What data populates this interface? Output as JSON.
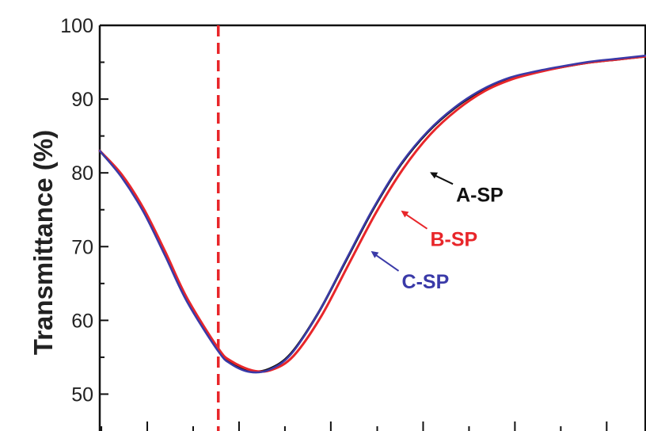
{
  "chart_data": {
    "type": "line",
    "title": "",
    "xlabel": "",
    "ylabel": "Transmittance (%)",
    "ylim": [
      45,
      100
    ],
    "yticks": [
      50,
      60,
      70,
      80,
      90,
      100
    ],
    "xlim": [
      0,
      100
    ],
    "grid": false,
    "reference_line": {
      "x": 21.7,
      "color": "#e8262a",
      "style": "dashed"
    },
    "series": [
      {
        "name": "A-SP",
        "color": "#111111",
        "x": [
          0,
          4,
          8,
          12,
          16,
          21.7,
          24,
          27.5,
          31,
          35,
          40,
          45,
          50,
          55,
          60,
          65,
          70,
          75,
          80,
          85,
          90,
          95,
          100
        ],
        "y": [
          83,
          79.5,
          74.8,
          68.8,
          62.6,
          55.9,
          54.2,
          53.1,
          53.4,
          55.5,
          61,
          68,
          75,
          81,
          85.5,
          88.8,
          91.2,
          92.8,
          93.7,
          94.4,
          95,
          95.4,
          95.8
        ]
      },
      {
        "name": "B-SP",
        "color": "#e8262a",
        "x": [
          0,
          4,
          8,
          12,
          16,
          21.7,
          24,
          28,
          31.5,
          35.5,
          40.5,
          45.5,
          50.5,
          55.5,
          60.5,
          65.5,
          70.5,
          75.5,
          80,
          85,
          90,
          95,
          100
        ],
        "y": [
          83,
          79.8,
          75.2,
          69.3,
          63,
          56.2,
          54.5,
          53.2,
          53.3,
          55.2,
          60.5,
          67.5,
          74.5,
          80.5,
          85.2,
          88.6,
          91.1,
          92.7,
          93.6,
          94.4,
          95,
          95.4,
          95.8
        ]
      },
      {
        "name": "C-SP",
        "color": "#3a3aa8",
        "x": [
          0,
          4,
          8,
          12,
          16,
          21.7,
          24,
          27.5,
          31,
          35,
          40,
          45,
          50,
          55,
          60,
          65,
          70,
          75,
          80,
          85,
          90,
          95,
          100
        ],
        "y": [
          83,
          79.4,
          74.7,
          68.7,
          62.5,
          55.8,
          54.1,
          53,
          53.3,
          55.4,
          61,
          68.1,
          75.1,
          81.1,
          85.6,
          88.9,
          91.3,
          92.9,
          93.8,
          94.5,
          95.1,
          95.5,
          95.9
        ]
      }
    ],
    "annotations": [
      {
        "text": "A-SP",
        "series": 0,
        "x": 60.3,
        "y": 80.2,
        "color": "#111111"
      },
      {
        "text": "B-SP",
        "series": 1,
        "x": 55,
        "y": 75,
        "color": "#e8262a"
      },
      {
        "text": "C-SP",
        "series": 2,
        "x": 49.5,
        "y": 69.5,
        "color": "#3a3aa8"
      }
    ]
  }
}
